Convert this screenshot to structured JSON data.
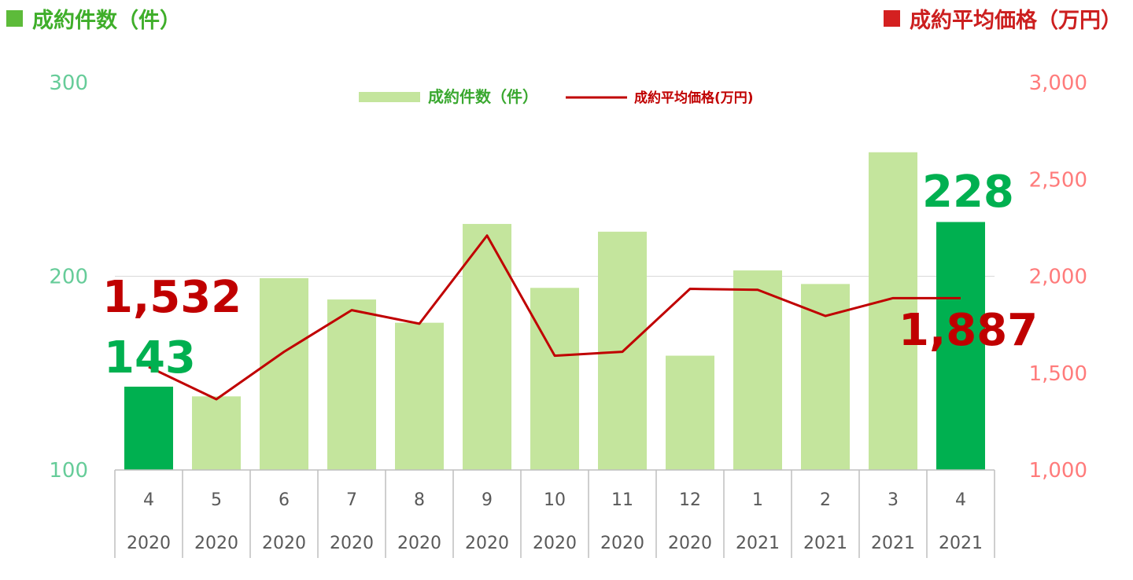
{
  "header": {
    "left_title": "成約件数（件）",
    "right_title": "成約平均価格（万円）",
    "left_icon": "green-square-icon",
    "right_icon": "red-square-icon"
  },
  "legend": {
    "bar_label": "成約件数（件）",
    "line_label": "成約平均価格(万円)"
  },
  "colors": {
    "bar_light": "#c4e59d",
    "bar_highlight": "#00b050",
    "line": "#c00000",
    "left_axis": "#66cc99",
    "right_axis": "#ff7b7b"
  },
  "chart_data": {
    "type": "bar",
    "categories": [
      "4",
      "5",
      "6",
      "7",
      "8",
      "9",
      "10",
      "11",
      "12",
      "1",
      "2",
      "3",
      "4"
    ],
    "years": [
      "2020",
      "2020",
      "2020",
      "2020",
      "2020",
      "2020",
      "2020",
      "2020",
      "2020",
      "2021",
      "2021",
      "2021",
      "2021"
    ],
    "left_axis": {
      "ylim": [
        100,
        300
      ],
      "ticks": [
        "100",
        "200",
        "300"
      ]
    },
    "right_axis": {
      "ylim": [
        1000,
        3000
      ],
      "ticks": [
        "1,000",
        "1,500",
        "2,000",
        "2,500",
        "3,000"
      ]
    },
    "series": [
      {
        "name": "成約件数（件）",
        "type": "bar",
        "axis": "left",
        "values": [
          143,
          138,
          199,
          188,
          176,
          227,
          194,
          223,
          159,
          203,
          196,
          264,
          228
        ],
        "highlight": [
          true,
          false,
          false,
          false,
          false,
          false,
          false,
          false,
          false,
          false,
          false,
          false,
          true
        ]
      },
      {
        "name": "成約平均価格(万円)",
        "type": "line",
        "axis": "right",
        "values": [
          1532,
          1365,
          1610,
          1825,
          1755,
          2210,
          1590,
          1610,
          1935,
          1930,
          1795,
          1887,
          1887
        ]
      }
    ],
    "data_labels": {
      "bar_first": "143",
      "bar_last": "228",
      "line_first": "1,532",
      "line_last": "1,887"
    },
    "grid": "horizontal at 200",
    "legend_position": "top-center"
  }
}
